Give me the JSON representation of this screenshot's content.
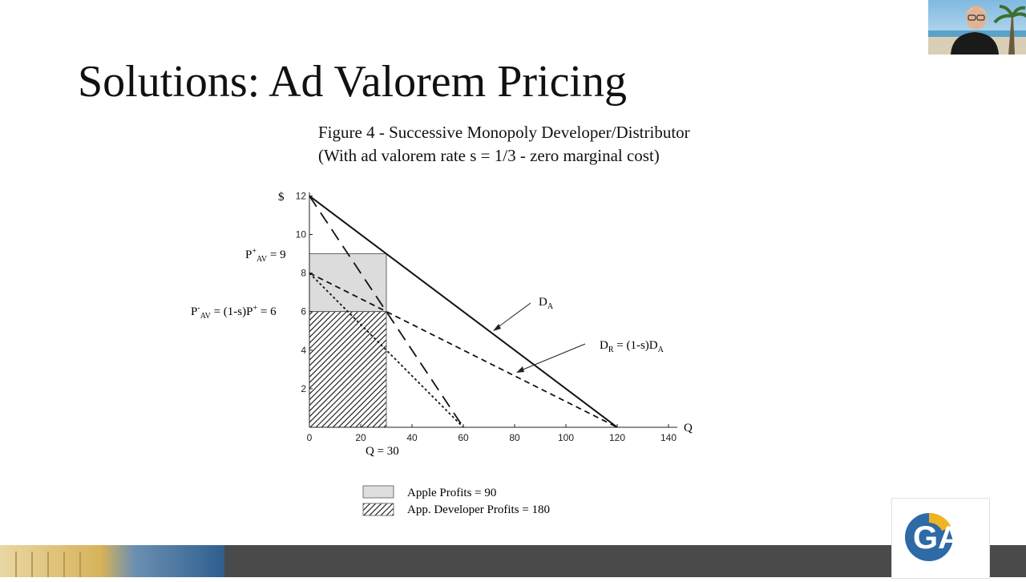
{
  "slide": {
    "title": "Solutions: Ad Valorem Pricing",
    "figure_title_line1": "Figure 4 - Successive Monopoly Developer/Distributor",
    "figure_title_line2": "(With ad valorem rate s = 1/3 - zero marginal cost)"
  },
  "chart_data": {
    "type": "line",
    "xlabel": "Q",
    "ylabel": "$",
    "xlim": [
      0,
      140
    ],
    "ylim": [
      0,
      12
    ],
    "x_ticks": [
      "0",
      "20",
      "40",
      "60",
      "80",
      "100",
      "120",
      "140"
    ],
    "y_ticks": [
      "2",
      "4",
      "6",
      "8",
      "10",
      "12"
    ],
    "x_tick_values": [
      0,
      20,
      40,
      60,
      80,
      100,
      120,
      140
    ],
    "y_tick_values": [
      2,
      4,
      6,
      8,
      10,
      12
    ],
    "series": [
      {
        "name": "D_A",
        "style": "solid",
        "points": [
          [
            0,
            12
          ],
          [
            120,
            0
          ]
        ]
      },
      {
        "name": "D_R = (1-s)D_A",
        "style": "dashed",
        "points": [
          [
            0,
            8
          ],
          [
            120,
            0
          ]
        ]
      },
      {
        "style": "long-dash",
        "points": [
          [
            0,
            12
          ],
          [
            60,
            0
          ]
        ]
      },
      {
        "style": "dotted",
        "points": [
          [
            0,
            8
          ],
          [
            60,
            0
          ]
        ]
      }
    ],
    "regions": [
      {
        "style": "gray-fill",
        "x": [
          0,
          30
        ],
        "y": [
          6,
          9
        ]
      },
      {
        "style": "hatch",
        "x": [
          0,
          30
        ],
        "y": [
          0,
          6
        ]
      }
    ],
    "annotations": {
      "p_plus_label": "P",
      "p_plus_sup": "+",
      "p_plus_sub": "AV",
      "p_plus_value": " = 9",
      "p_minus_label": "P",
      "p_minus_sup": "-",
      "p_minus_sub": "AV",
      "p_minus_value": " = (1-s)P",
      "p_minus_value_sup": "+",
      "p_minus_value_end": " = 6",
      "q_label": "Q = 30",
      "da_label": "D",
      "da_sub": "A",
      "dr_label": "D",
      "dr_sub": "R",
      "dr_eq": " = (1-s)D",
      "dr_eq_sub": "A"
    },
    "legend": [
      {
        "style": "gray-fill",
        "label": "Apple Profits = 90"
      },
      {
        "style": "hatch",
        "label": "App. Developer Profits = 180"
      }
    ]
  },
  "logo": {
    "text": "GAI"
  }
}
